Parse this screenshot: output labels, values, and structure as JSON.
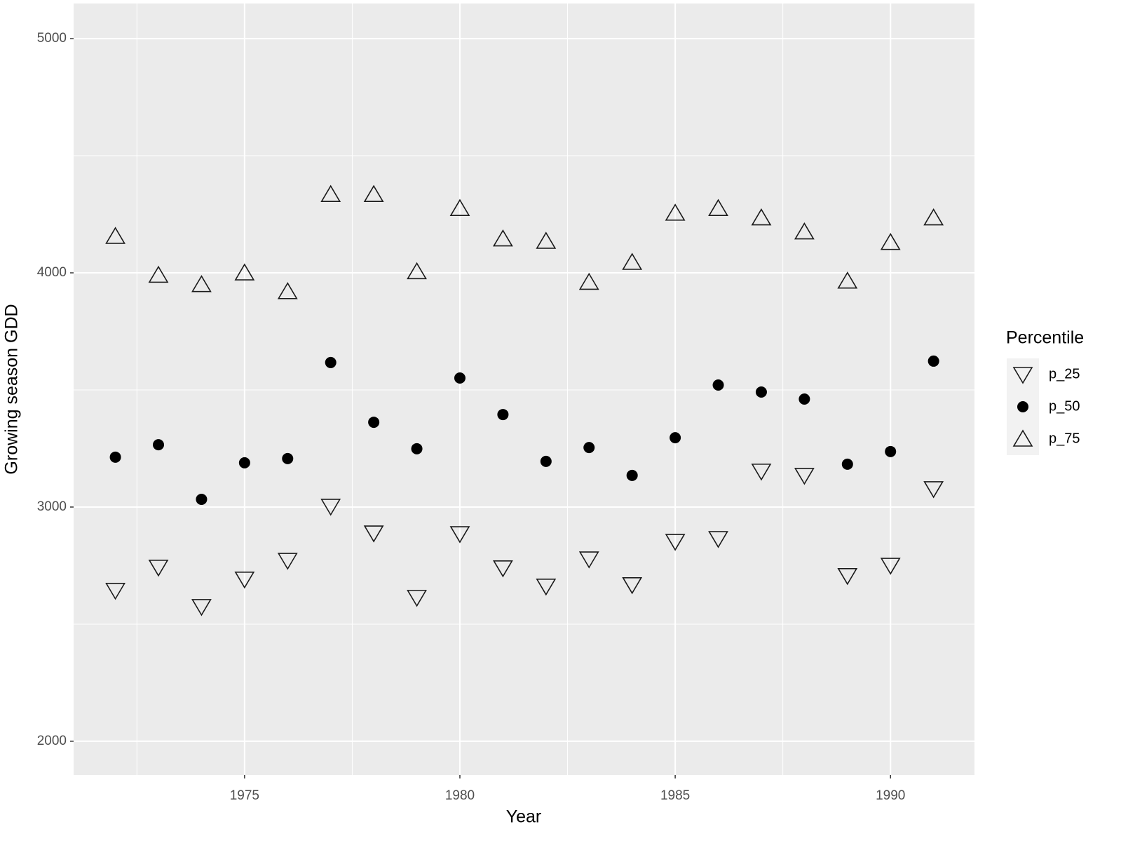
{
  "chart_data": {
    "type": "scatter",
    "x_label": "Year",
    "y_label": "Growing season GDD",
    "x": [
      1972,
      1973,
      1974,
      1975,
      1976,
      1977,
      1978,
      1979,
      1980,
      1981,
      1982,
      1983,
      1984,
      1985,
      1986,
      1987,
      1988,
      1989,
      1990,
      1991
    ],
    "series": [
      {
        "name": "p_25",
        "color": "#1a1a1a",
        "shape": "triangle-down",
        "values": [
          2644,
          2743,
          2575,
          2692,
          2772,
          3003,
          2889,
          2614,
          2886,
          2740,
          2662,
          2778,
          2668,
          2853,
          2865,
          3153,
          3135,
          2707,
          2751,
          3078
        ]
      },
      {
        "name": "p_50",
        "color": "#000000",
        "shape": "circle",
        "values": [
          3213,
          3266,
          3033,
          3189,
          3207,
          3617,
          3362,
          3249,
          3551,
          3395,
          3195,
          3254,
          3135,
          3296,
          3521,
          3491,
          3461,
          3183,
          3237,
          3623
        ]
      },
      {
        "name": "p_75",
        "color": "#1a1a1a",
        "shape": "triangle-up",
        "values": [
          4156,
          3990,
          3950,
          4000,
          3920,
          4335,
          4335,
          4005,
          4275,
          4145,
          4135,
          3960,
          4045,
          4255,
          4275,
          4235,
          4175,
          3965,
          4130,
          4235
        ]
      }
    ],
    "legend_title": "Percentile",
    "legend": "right",
    "xlim": [
      1971.03,
      1991.95
    ],
    "xticks": [
      1975,
      1980,
      1985,
      1990
    ],
    "ylim": [
      1856,
      5150
    ],
    "yticks": [
      2000,
      3000,
      4000,
      5000
    ],
    "grid": true
  }
}
